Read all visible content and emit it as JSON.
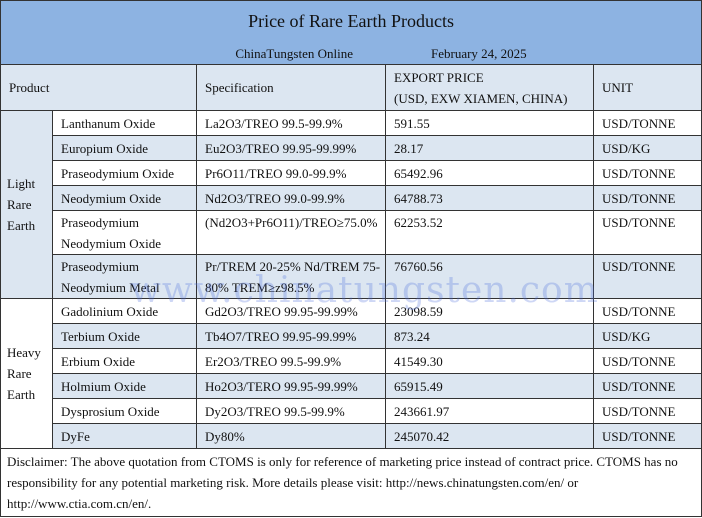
{
  "title": "Price of Rare Earth Products",
  "source": "ChinaTungsten Online",
  "date": "February 24, 2025",
  "headers": {
    "product": "Product",
    "specification": "Specification",
    "price_line1": "EXPORT PRICE",
    "price_line2": "(USD, EXW XIAMEN, CHINA)",
    "unit": "UNIT"
  },
  "groups": {
    "light": "Light Rare Earth",
    "heavy": "Heavy Rare Earth"
  },
  "rows": [
    {
      "product": "Lanthanum Oxide",
      "spec": "La2O3/TREO 99.5-99.9%",
      "price": "591.55",
      "unit": "USD/TONNE"
    },
    {
      "product": "Europium Oxide",
      "spec": "Eu2O3/TREO 99.95-99.99%",
      "price": "28.17",
      "unit": "USD/KG"
    },
    {
      "product": "Praseodymium Oxide",
      "spec": "Pr6O11/TREO 99.0-99.9%",
      "price": "65492.96",
      "unit": "USD/TONNE"
    },
    {
      "product": "Neodymium Oxide",
      "spec": "Nd2O3/TREO 99.0-99.9%",
      "price": "64788.73",
      "unit": "USD/TONNE"
    },
    {
      "product": "Praseodymium Neodymium Oxide",
      "spec": "(Nd2O3+Pr6O11)/TREO≥75.0%",
      "price": "62253.52",
      "unit": "USD/TONNE"
    },
    {
      "product": "Praseodymium Neodymium Metal",
      "spec": "Pr/TREM 20-25% Nd/TREM 75-80% TREM≥z98.5%",
      "price": "76760.56",
      "unit": "USD/TONNE"
    },
    {
      "product": "Gadolinium Oxide",
      "spec": "Gd2O3/TREO 99.95-99.99%",
      "price": "23098.59",
      "unit": "USD/TONNE"
    },
    {
      "product": "Terbium Oxide",
      "spec": "Tb4O7/TREO 99.95-99.99%",
      "price": "873.24",
      "unit": "USD/KG"
    },
    {
      "product": "Erbium Oxide",
      "spec": "Er2O3/TREO 99.5-99.9%",
      "price": "41549.30",
      "unit": "USD/TONNE"
    },
    {
      "product": "Holmium Oxide",
      "spec": "Ho2O3/TERO 99.95-99.99%",
      "price": "65915.49",
      "unit": "USD/TONNE"
    },
    {
      "product": "Dysprosium Oxide",
      "spec": "Dy2O3/TREO 99.5-99.9%",
      "price": "243661.97",
      "unit": "USD/TONNE"
    },
    {
      "product": "DyFe",
      "spec": "Dy80%",
      "price": "245070.42",
      "unit": "USD/TONNE"
    }
  ],
  "disclaimer": "Disclaimer: The above quotation from CTOMS is only for reference of marketing price instead of contract price. CTOMS has no responsibility for any potential marketing risk. More details please visit:    http://news.chinatungsten.com/en/ or http://www.ctia.com.cn/en/.",
  "watermark": "www.chinatungsten.com",
  "colors": {
    "title_bg": "#8db3e2",
    "stripe_bg": "#dce6f1"
  }
}
